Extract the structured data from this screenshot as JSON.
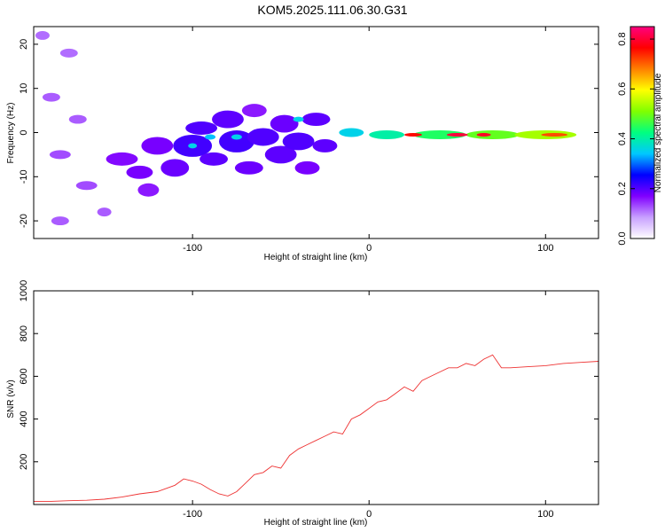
{
  "title": "KOM5.2025.111.06.30.G31",
  "chart_data": [
    {
      "type": "heatmap",
      "xlabel": "Height of straight line (km)",
      "ylabel": "Frequency (Hz)",
      "xlim": [
        -190,
        130
      ],
      "ylim": [
        -24,
        24
      ],
      "xticks": [
        -100,
        0,
        100
      ],
      "yticks": [
        -20,
        -10,
        0,
        10,
        20
      ],
      "colorbar": {
        "label": "Normalized spectral amplitude",
        "range": [
          0,
          0.85
        ],
        "ticks": [
          0.0,
          0.2,
          0.4,
          0.6,
          0.8
        ],
        "colormap": [
          "#ffffff",
          "#c8a0ff",
          "#8000ff",
          "#0000ff",
          "#00c8ff",
          "#00ff80",
          "#80ff00",
          "#ffff00",
          "#ff8000",
          "#ff0000",
          "#ff0080"
        ]
      },
      "blobs": [
        {
          "x": -185,
          "y": 22,
          "w": 8,
          "h": 2,
          "v": 0.03
        },
        {
          "x": -170,
          "y": 18,
          "w": 10,
          "h": 2,
          "v": 0.03
        },
        {
          "x": -180,
          "y": 8,
          "w": 10,
          "h": 2,
          "v": 0.04
        },
        {
          "x": -165,
          "y": 3,
          "w": 10,
          "h": 2,
          "v": 0.04
        },
        {
          "x": -175,
          "y": -5,
          "w": 12,
          "h": 2,
          "v": 0.05
        },
        {
          "x": -160,
          "y": -12,
          "w": 12,
          "h": 2,
          "v": 0.05
        },
        {
          "x": -175,
          "y": -20,
          "w": 10,
          "h": 2,
          "v": 0.04
        },
        {
          "x": -150,
          "y": -18,
          "w": 8,
          "h": 2,
          "v": 0.04
        },
        {
          "x": -140,
          "y": -6,
          "w": 18,
          "h": 3,
          "v": 0.09
        },
        {
          "x": -130,
          "y": -9,
          "w": 15,
          "h": 3,
          "v": 0.1
        },
        {
          "x": -125,
          "y": -13,
          "w": 12,
          "h": 3,
          "v": 0.08
        },
        {
          "x": -120,
          "y": -3,
          "w": 18,
          "h": 4,
          "v": 0.1
        },
        {
          "x": -110,
          "y": -8,
          "w": 16,
          "h": 4,
          "v": 0.11
        },
        {
          "x": -100,
          "y": -3,
          "w": 22,
          "h": 5,
          "v": 0.14
        },
        {
          "x": -95,
          "y": 1,
          "w": 18,
          "h": 3,
          "v": 0.13
        },
        {
          "x": -88,
          "y": -6,
          "w": 16,
          "h": 3,
          "v": 0.12
        },
        {
          "x": -80,
          "y": 3,
          "w": 18,
          "h": 4,
          "v": 0.12
        },
        {
          "x": -75,
          "y": -2,
          "w": 20,
          "h": 5,
          "v": 0.14
        },
        {
          "x": -68,
          "y": -8,
          "w": 16,
          "h": 3,
          "v": 0.11
        },
        {
          "x": -65,
          "y": 5,
          "w": 14,
          "h": 3,
          "v": 0.08
        },
        {
          "x": -60,
          "y": -1,
          "w": 18,
          "h": 4,
          "v": 0.13
        },
        {
          "x": -50,
          "y": -5,
          "w": 18,
          "h": 4,
          "v": 0.12
        },
        {
          "x": -48,
          "y": 2,
          "w": 16,
          "h": 4,
          "v": 0.11
        },
        {
          "x": -40,
          "y": -2,
          "w": 18,
          "h": 4,
          "v": 0.13
        },
        {
          "x": -35,
          "y": -8,
          "w": 14,
          "h": 3,
          "v": 0.1
        },
        {
          "x": -30,
          "y": 3,
          "w": 16,
          "h": 3,
          "v": 0.12
        },
        {
          "x": -25,
          "y": -3,
          "w": 14,
          "h": 3,
          "v": 0.12
        },
        {
          "x": -100,
          "y": -3,
          "w": 5,
          "h": 1.2,
          "v": 0.3
        },
        {
          "x": -90,
          "y": -1,
          "w": 6,
          "h": 1.2,
          "v": 0.28
        },
        {
          "x": -75,
          "y": -1,
          "w": 6,
          "h": 1.2,
          "v": 0.3
        },
        {
          "x": -40,
          "y": 3,
          "w": 6,
          "h": 1.2,
          "v": 0.3
        },
        {
          "x": -10,
          "y": 0,
          "w": 14,
          "h": 2,
          "v": 0.3
        },
        {
          "x": 10,
          "y": -0.5,
          "w": 20,
          "h": 2,
          "v": 0.35
        },
        {
          "x": 40,
          "y": -0.5,
          "w": 30,
          "h": 2,
          "v": 0.4
        },
        {
          "x": 70,
          "y": -0.5,
          "w": 30,
          "h": 2,
          "v": 0.45
        },
        {
          "x": 100,
          "y": -0.5,
          "w": 35,
          "h": 2,
          "v": 0.5
        },
        {
          "x": 25,
          "y": -0.5,
          "w": 10,
          "h": 0.8,
          "v": 0.75
        },
        {
          "x": 50,
          "y": -0.5,
          "w": 12,
          "h": 0.8,
          "v": 0.8
        },
        {
          "x": 65,
          "y": -0.5,
          "w": 8,
          "h": 0.8,
          "v": 0.78
        },
        {
          "x": 105,
          "y": -0.5,
          "w": 15,
          "h": 0.8,
          "v": 0.7
        }
      ]
    },
    {
      "type": "line",
      "xlabel": "Height of straight line (km)",
      "ylabel": "SNR (v/v)",
      "xlim": [
        -190,
        130
      ],
      "ylim": [
        0,
        1000
      ],
      "xticks": [
        -100,
        0,
        100
      ],
      "yticks": [
        200,
        400,
        600,
        800,
        1000
      ],
      "color": "#ee3333",
      "series": [
        {
          "x": [
            -190,
            -180,
            -170,
            -160,
            -150,
            -140,
            -130,
            -120,
            -110,
            -105,
            -100,
            -95,
            -90,
            -85,
            -80,
            -75,
            -70,
            -65,
            -60,
            -55,
            -50,
            -45,
            -40,
            -35,
            -30,
            -25,
            -20,
            -15,
            -10,
            -5,
            0,
            5,
            10,
            15,
            20,
            25,
            30,
            35,
            40,
            45,
            50,
            55,
            60,
            65,
            70,
            75,
            80,
            90,
            100,
            110,
            120,
            130
          ],
          "y": [
            15,
            15,
            18,
            20,
            25,
            35,
            50,
            60,
            90,
            120,
            110,
            95,
            70,
            50,
            40,
            60,
            100,
            140,
            150,
            180,
            170,
            230,
            260,
            280,
            300,
            320,
            340,
            330,
            400,
            420,
            450,
            480,
            490,
            520,
            550,
            530,
            580,
            600,
            620,
            640,
            640,
            660,
            650,
            680,
            700,
            640,
            640,
            645,
            650,
            660,
            665,
            670
          ]
        }
      ]
    }
  ]
}
